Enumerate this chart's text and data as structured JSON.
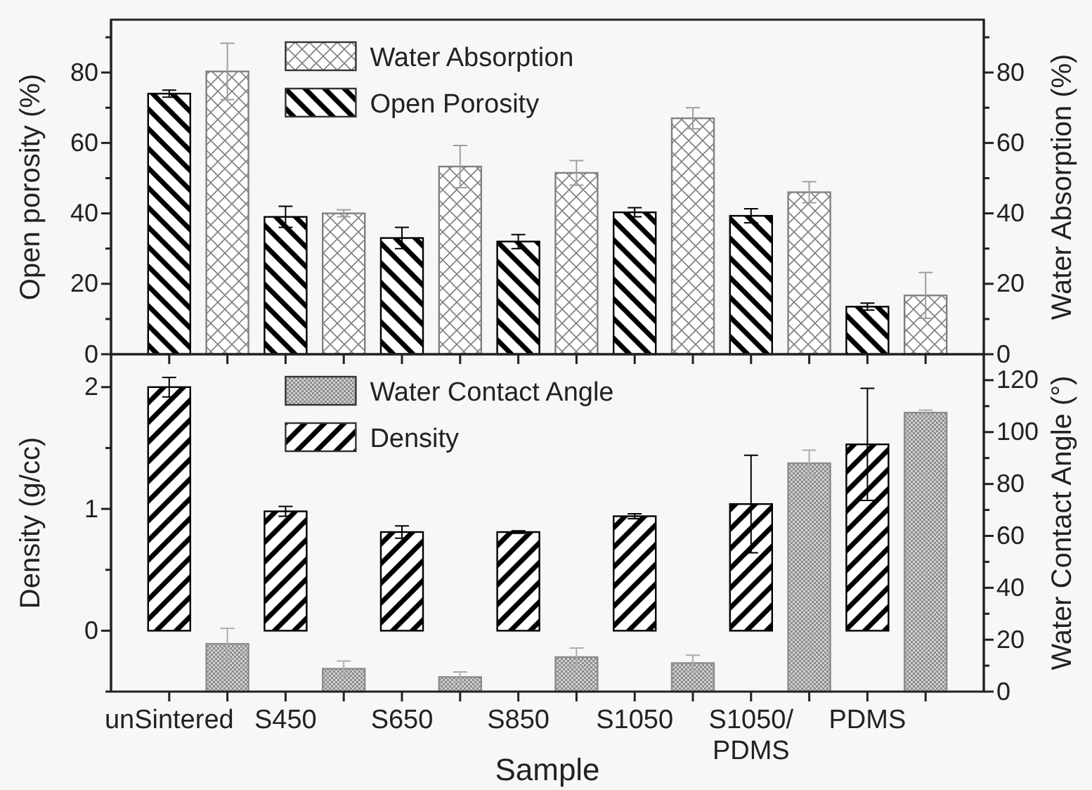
{
  "chart_data": [
    {
      "type": "bar",
      "categories": [
        null,
        null,
        null,
        null,
        null,
        null,
        null
      ],
      "ylabel": "Open porosity (%)",
      "y2label": "Water Absorption (%)",
      "ylim": [
        0,
        95
      ],
      "yticks": [
        0,
        {
          "value": 10,
          "label": null
        },
        20,
        {
          "value": 30,
          "label": null
        },
        40,
        {
          "value": 50,
          "label": null
        },
        60,
        {
          "value": 70,
          "label": null
        },
        80,
        {
          "value": 90,
          "label": null
        }
      ],
      "y2lim": [
        0,
        95
      ],
      "y2ticks": [
        0,
        {
          "value": 10,
          "label": null
        },
        20,
        {
          "value": 30,
          "label": null
        },
        40,
        {
          "value": 50,
          "label": null
        },
        60,
        {
          "value": 70,
          "label": null
        },
        80,
        {
          "value": 90,
          "label": null
        }
      ],
      "tick_labels": "y",
      "legend": "top",
      "grid": false,
      "series": [
        {
          "name": "Open Porosity",
          "color": "#000000",
          "axis": "y",
          "values": [
            74,
            39,
            33,
            32,
            40.3,
            39.3,
            13.5
          ],
          "errors": [
            1,
            3,
            3,
            2,
            1.3,
            2,
            1
          ]
        },
        {
          "name": "Water Absorption",
          "color": "#808080",
          "axis": "y2",
          "values": [
            80.3,
            40,
            53.3,
            51.5,
            67,
            46,
            16.7
          ],
          "errors": [
            8,
            1,
            6,
            3.5,
            3,
            3,
            6.5
          ]
        }
      ]
    },
    {
      "type": "bar",
      "categories": [
        "unSintered",
        "S450",
        "S650",
        "S850",
        "S1050",
        "S1050/PDMS",
        "PDMS"
      ],
      "xlabel": "Sample",
      "ylabel": "Density (g/cc)",
      "y2label": "Water Contact Angle (°)",
      "ylim": [
        -0.5,
        2.27
      ],
      "yticks": [
        {
          "value": -0.5,
          "label": null
        },
        0,
        {
          "value": 0.5,
          "label": null
        },
        1,
        {
          "value": 1.5,
          "label": null
        },
        2
      ],
      "y2lim": [
        0,
        130
      ],
      "y2ticks": [
        0,
        {
          "value": 10,
          "label": null
        },
        20,
        {
          "value": 30,
          "label": null
        },
        40,
        {
          "value": 50,
          "label": null
        },
        60,
        {
          "value": 70,
          "label": null
        },
        80,
        {
          "value": 90,
          "label": null
        },
        100,
        {
          "value": 110,
          "label": null
        },
        120
      ],
      "legend": "top",
      "grid": false,
      "series": [
        {
          "name": "Density",
          "color": "#000000",
          "axis": "y",
          "values": [
            2.0,
            0.98,
            0.81,
            0.81,
            0.94,
            1.04,
            1.53
          ],
          "errors": [
            0.08,
            0.04,
            0.05,
            0.01,
            0.02,
            0.4,
            0.46
          ]
        },
        {
          "name": "Water Contact Angle",
          "color": "#8c8c8c",
          "axis": "y2",
          "values": [
            18.4,
            8.8,
            5.6,
            13.3,
            11,
            88,
            107.5
          ],
          "errors": [
            6,
            3,
            2,
            3.5,
            3,
            5,
            1
          ]
        }
      ]
    }
  ]
}
